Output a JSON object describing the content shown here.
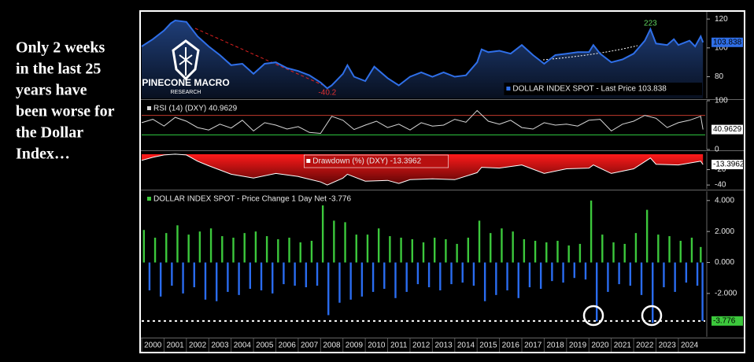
{
  "caption": [
    "Only 2 weeks",
    "in the last 25",
    "years have",
    "been worse for",
    "the Dollar",
    "Index…"
  ],
  "watermark": {
    "name": "PINECONE MACRO",
    "sub": "RESEARCH"
  },
  "chart_data": [
    {
      "type": "line",
      "legend": "lower right",
      "label_bg": "#2f6fe8",
      "xlim": [
        2000,
        2025.2
      ],
      "ylim": [
        65,
        125
      ],
      "yticks": [
        80,
        100,
        120
      ],
      "annotations": [
        {
          "text": "-40.2",
          "x": 2008.3,
          "y": 69,
          "color": "#e03030"
        },
        {
          "text": "223",
          "x": 2022.75,
          "y": 117,
          "color": "#5fd35f"
        }
      ],
      "series": [
        {
          "name": "DOLLAR INDEX SPOT - Last Price 103.838",
          "color": "#2f6fe8",
          "x": [
            2000,
            2000.5,
            2001,
            2001.3,
            2001.5,
            2002,
            2002.5,
            2003,
            2003.5,
            2004,
            2004.5,
            2005,
            2005.5,
            2006,
            2006.5,
            2007,
            2007.5,
            2008,
            2008.3,
            2008.5,
            2009,
            2009.2,
            2009.5,
            2010,
            2010.4,
            2011,
            2011.5,
            2012,
            2012.5,
            2013,
            2013.5,
            2014,
            2014.5,
            2015,
            2015.2,
            2015.5,
            2016,
            2016.5,
            2017,
            2017.5,
            2018,
            2018.5,
            2019,
            2019.5,
            2020,
            2020.2,
            2020.5,
            2021,
            2021.5,
            2022,
            2022.5,
            2022.75,
            2023,
            2023.5,
            2023.8,
            2024,
            2024.5,
            2024.75,
            2025,
            2025.1
          ],
          "values": [
            101,
            106,
            112,
            117,
            119,
            118,
            108,
            101,
            95,
            88,
            89,
            82,
            89,
            90,
            86,
            84,
            81,
            76,
            72,
            74,
            82,
            88,
            80,
            77,
            87,
            79,
            74,
            80,
            83,
            80,
            83,
            80,
            81,
            90,
            99,
            97,
            98,
            96,
            102,
            95,
            89,
            95,
            96,
            97,
            97,
            102,
            96,
            90,
            92,
            96,
            105,
            113,
            103,
            102,
            106,
            102,
            105,
            101,
            108,
            103.838
          ]
        }
      ]
    },
    {
      "type": "line",
      "legend": "upper left",
      "label_bg": "#ffffff",
      "xlim": [
        2000,
        2025.2
      ],
      "ylim": [
        0,
        100
      ],
      "yticks": [
        0,
        100
      ],
      "levels": [
        {
          "value": 70,
          "color": "#c0392b"
        },
        {
          "value": 30,
          "color": "#2ecc40"
        }
      ],
      "series": [
        {
          "name": "RSI (14) (DXY) 40.9629",
          "color": "#d8d8d8",
          "x": [
            2000,
            2000.5,
            2001,
            2001.5,
            2002,
            2002.5,
            2003,
            2003.5,
            2004,
            2004.5,
            2005,
            2005.5,
            2006,
            2006.5,
            2007,
            2007.5,
            2008,
            2008.5,
            2009,
            2009.5,
            2010,
            2010.5,
            2011,
            2011.5,
            2012,
            2012.5,
            2013,
            2013.5,
            2014,
            2014.5,
            2015,
            2015.5,
            2016,
            2016.5,
            2017,
            2017.5,
            2018,
            2018.5,
            2019,
            2019.5,
            2020,
            2020.5,
            2021,
            2021.5,
            2022,
            2022.5,
            2023,
            2023.5,
            2024,
            2024.5,
            2025,
            2025.1
          ],
          "values": [
            55,
            62,
            48,
            66,
            58,
            45,
            40,
            52,
            44,
            60,
            38,
            55,
            50,
            42,
            47,
            35,
            33,
            68,
            60,
            41,
            50,
            58,
            45,
            52,
            40,
            55,
            48,
            50,
            62,
            56,
            80,
            58,
            52,
            60,
            45,
            42,
            55,
            50,
            52,
            48,
            60,
            62,
            38,
            52,
            58,
            70,
            64,
            45,
            55,
            60,
            68,
            40.9629
          ]
        }
      ]
    },
    {
      "type": "area",
      "legend": "upper center",
      "label_bg": "#ffffff",
      "xlim": [
        2000,
        2025.2
      ],
      "ylim": [
        -45,
        3
      ],
      "yticks": [
        -20,
        -40
      ],
      "series": [
        {
          "name": "Drawdown (%) (DXY) -13.3962",
          "color": "#e01515",
          "x": [
            2000,
            2000.5,
            2001,
            2001.5,
            2002,
            2002.5,
            2003,
            2004,
            2005,
            2006,
            2007,
            2008,
            2008.3,
            2009,
            2009.2,
            2010,
            2011,
            2011.5,
            2012,
            2013,
            2014,
            2015,
            2015.2,
            2016,
            2017,
            2018,
            2019,
            2020,
            2020.2,
            2021,
            2022,
            2022.75,
            2023,
            2024,
            2025,
            2025.1
          ],
          "values": [
            -8,
            -4,
            -1,
            0,
            -1,
            -9,
            -15,
            -26,
            -31,
            -25,
            -29,
            -36,
            -40,
            -31,
            -26,
            -35,
            -34,
            -38,
            -33,
            -32,
            -33,
            -24,
            -17,
            -18,
            -14,
            -25,
            -19,
            -18,
            -14,
            -25,
            -19,
            -5,
            -13,
            -14,
            -9,
            -13.3962
          ]
        }
      ]
    },
    {
      "type": "bar",
      "legend": "upper left",
      "label_bg": "#3cc83c",
      "color_up": "#3cc83c",
      "color_down": "#2a6cf0",
      "xlim": [
        2000,
        2025.2
      ],
      "ylim": [
        -4.8,
        4.6
      ],
      "yticks": [
        {
          "value": 4,
          "label": "4.000"
        },
        {
          "value": 2,
          "label": "2.000"
        },
        {
          "value": 0,
          "label": "0.000"
        },
        {
          "value": -2,
          "label": "-2.000"
        }
      ],
      "xticks": [
        2000,
        2001,
        2002,
        2003,
        2004,
        2005,
        2006,
        2007,
        2008,
        2009,
        2010,
        2011,
        2012,
        2013,
        2014,
        2015,
        2016,
        2017,
        2018,
        2019,
        2020,
        2021,
        2022,
        2023,
        2024
      ],
      "series": [
        {
          "name": "DOLLAR INDEX SPOT - Price Change 1 Day Net -3.776",
          "color": "#3cc83c",
          "x": [
            2000.1,
            2000.35,
            2000.6,
            2000.85,
            2001.1,
            2001.35,
            2001.6,
            2001.85,
            2002.1,
            2002.35,
            2002.6,
            2002.85,
            2003.1,
            2003.35,
            2003.6,
            2003.85,
            2004.1,
            2004.35,
            2004.6,
            2004.85,
            2005.1,
            2005.35,
            2005.6,
            2005.85,
            2006.1,
            2006.35,
            2006.6,
            2006.85,
            2007.1,
            2007.35,
            2007.6,
            2007.85,
            2008.1,
            2008.35,
            2008.6,
            2008.85,
            2009.1,
            2009.35,
            2009.6,
            2009.85,
            2010.1,
            2010.35,
            2010.6,
            2010.85,
            2011.1,
            2011.35,
            2011.6,
            2011.85,
            2012.1,
            2012.35,
            2012.6,
            2012.85,
            2013.1,
            2013.35,
            2013.6,
            2013.85,
            2014.1,
            2014.35,
            2014.6,
            2014.85,
            2015.1,
            2015.35,
            2015.6,
            2015.85,
            2016.1,
            2016.35,
            2016.6,
            2016.85,
            2017.1,
            2017.35,
            2017.6,
            2017.85,
            2018.1,
            2018.35,
            2018.6,
            2018.85,
            2019.1,
            2019.35,
            2019.6,
            2019.85,
            2020.1,
            2020.35,
            2020.6,
            2020.85,
            2021.1,
            2021.35,
            2021.6,
            2021.85,
            2022.1,
            2022.35,
            2022.6,
            2022.85,
            2023.1,
            2023.35,
            2023.6,
            2023.85,
            2024.1,
            2024.35,
            2024.6,
            2024.85,
            2025.0,
            2025.08
          ],
          "values": [
            2.1,
            -1.8,
            1.6,
            -2.2,
            1.9,
            -1.5,
            2.4,
            -2.0,
            1.8,
            -1.6,
            2.0,
            -2.4,
            2.2,
            -2.5,
            1.7,
            -1.9,
            1.6,
            -2.1,
            1.9,
            -1.7,
            2.0,
            -1.8,
            1.7,
            -2.0,
            1.5,
            -1.4,
            1.6,
            -1.5,
            1.3,
            -1.6,
            1.4,
            -1.5,
            3.9,
            -3.4,
            2.7,
            -2.6,
            2.6,
            -2.4,
            1.8,
            -2.2,
            1.8,
            -1.9,
            2.2,
            -1.7,
            1.7,
            -2.3,
            1.6,
            -1.9,
            1.5,
            -1.4,
            1.3,
            -1.6,
            1.6,
            -1.8,
            1.5,
            -1.4,
            1.2,
            -1.3,
            1.6,
            -1.5,
            2.7,
            -2.5,
            1.9,
            -2.1,
            2.2,
            -1.8,
            2.0,
            -2.3,
            1.5,
            -1.6,
            1.4,
            -1.7,
            1.3,
            -1.2,
            1.4,
            -1.3,
            1.1,
            -1.0,
            1.2,
            -1.1,
            4.0,
            -3.8,
            1.8,
            -1.9,
            1.3,
            -1.4,
            1.2,
            -1.5,
            1.9,
            -2.1,
            3.4,
            -3.9,
            1.8,
            -1.6,
            1.7,
            -1.9,
            1.4,
            -1.3,
            1.6,
            -1.5,
            1.0,
            -3.776
          ]
        }
      ]
    }
  ]
}
